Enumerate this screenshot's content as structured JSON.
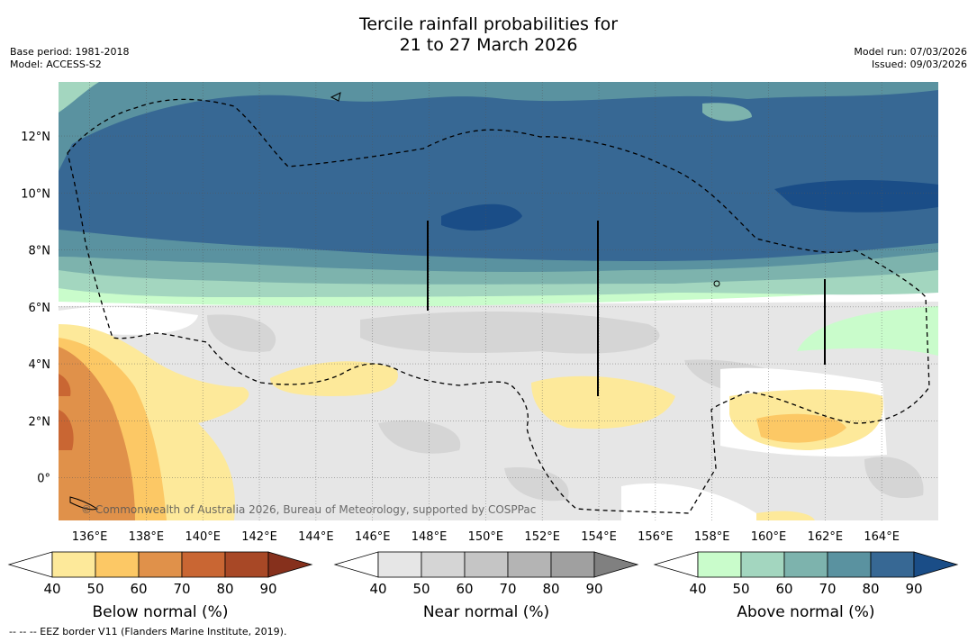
{
  "title": {
    "line1": "Tercile rainfall probabilities for",
    "line2": "21 to 27 March 2026"
  },
  "meta_left": {
    "base_period": "Base period: 1981-2018",
    "model": "Model: ACCESS-S2"
  },
  "meta_right": {
    "model_run": "Model run: 07/03/2026",
    "issued": "Issued: 09/03/2026"
  },
  "map": {
    "lon_labels": [
      "136°E",
      "138°E",
      "140°E",
      "142°E",
      "144°E",
      "146°E",
      "148°E",
      "150°E",
      "152°E",
      "154°E",
      "156°E",
      "158°E",
      "160°E",
      "162°E",
      "164°E"
    ],
    "lat_labels": [
      "12°N",
      "10°N",
      "8°N",
      "6°N",
      "4°N",
      "2°N",
      "0°"
    ],
    "lon_range": [
      134.9,
      166.0
    ],
    "lat_range": [
      -1.5,
      13.9
    ],
    "copyright": "© Commonwealth of Australia 2026, Bureau of Meteorology, supported by COSPPac"
  },
  "colorbars": [
    {
      "label": "Below normal (%)",
      "ticks": [
        "40",
        "50",
        "60",
        "70",
        "80",
        "90"
      ],
      "colors": [
        "#ffffff",
        "#fde99a",
        "#fcc865",
        "#e0914a",
        "#c96633",
        "#a84826",
        "#86301c"
      ]
    },
    {
      "label": "Near normal (%)",
      "ticks": [
        "40",
        "50",
        "60",
        "70",
        "80",
        "90"
      ],
      "colors": [
        "#ffffff",
        "#e6e6e6",
        "#d5d5d5",
        "#c5c5c5",
        "#b4b4b4",
        "#a0a0a0",
        "#808080"
      ]
    },
    {
      "label": "Above normal (%)",
      "ticks": [
        "40",
        "50",
        "60",
        "70",
        "80",
        "90"
      ],
      "colors": [
        "#ffffff",
        "#c9fccb",
        "#a3d6bf",
        "#7db3ad",
        "#5a92a0",
        "#376894",
        "#1a4d87"
      ]
    }
  ],
  "footer": "--  --  -- EEZ border V11 (Flanders Marine Institute, 2019)."
}
